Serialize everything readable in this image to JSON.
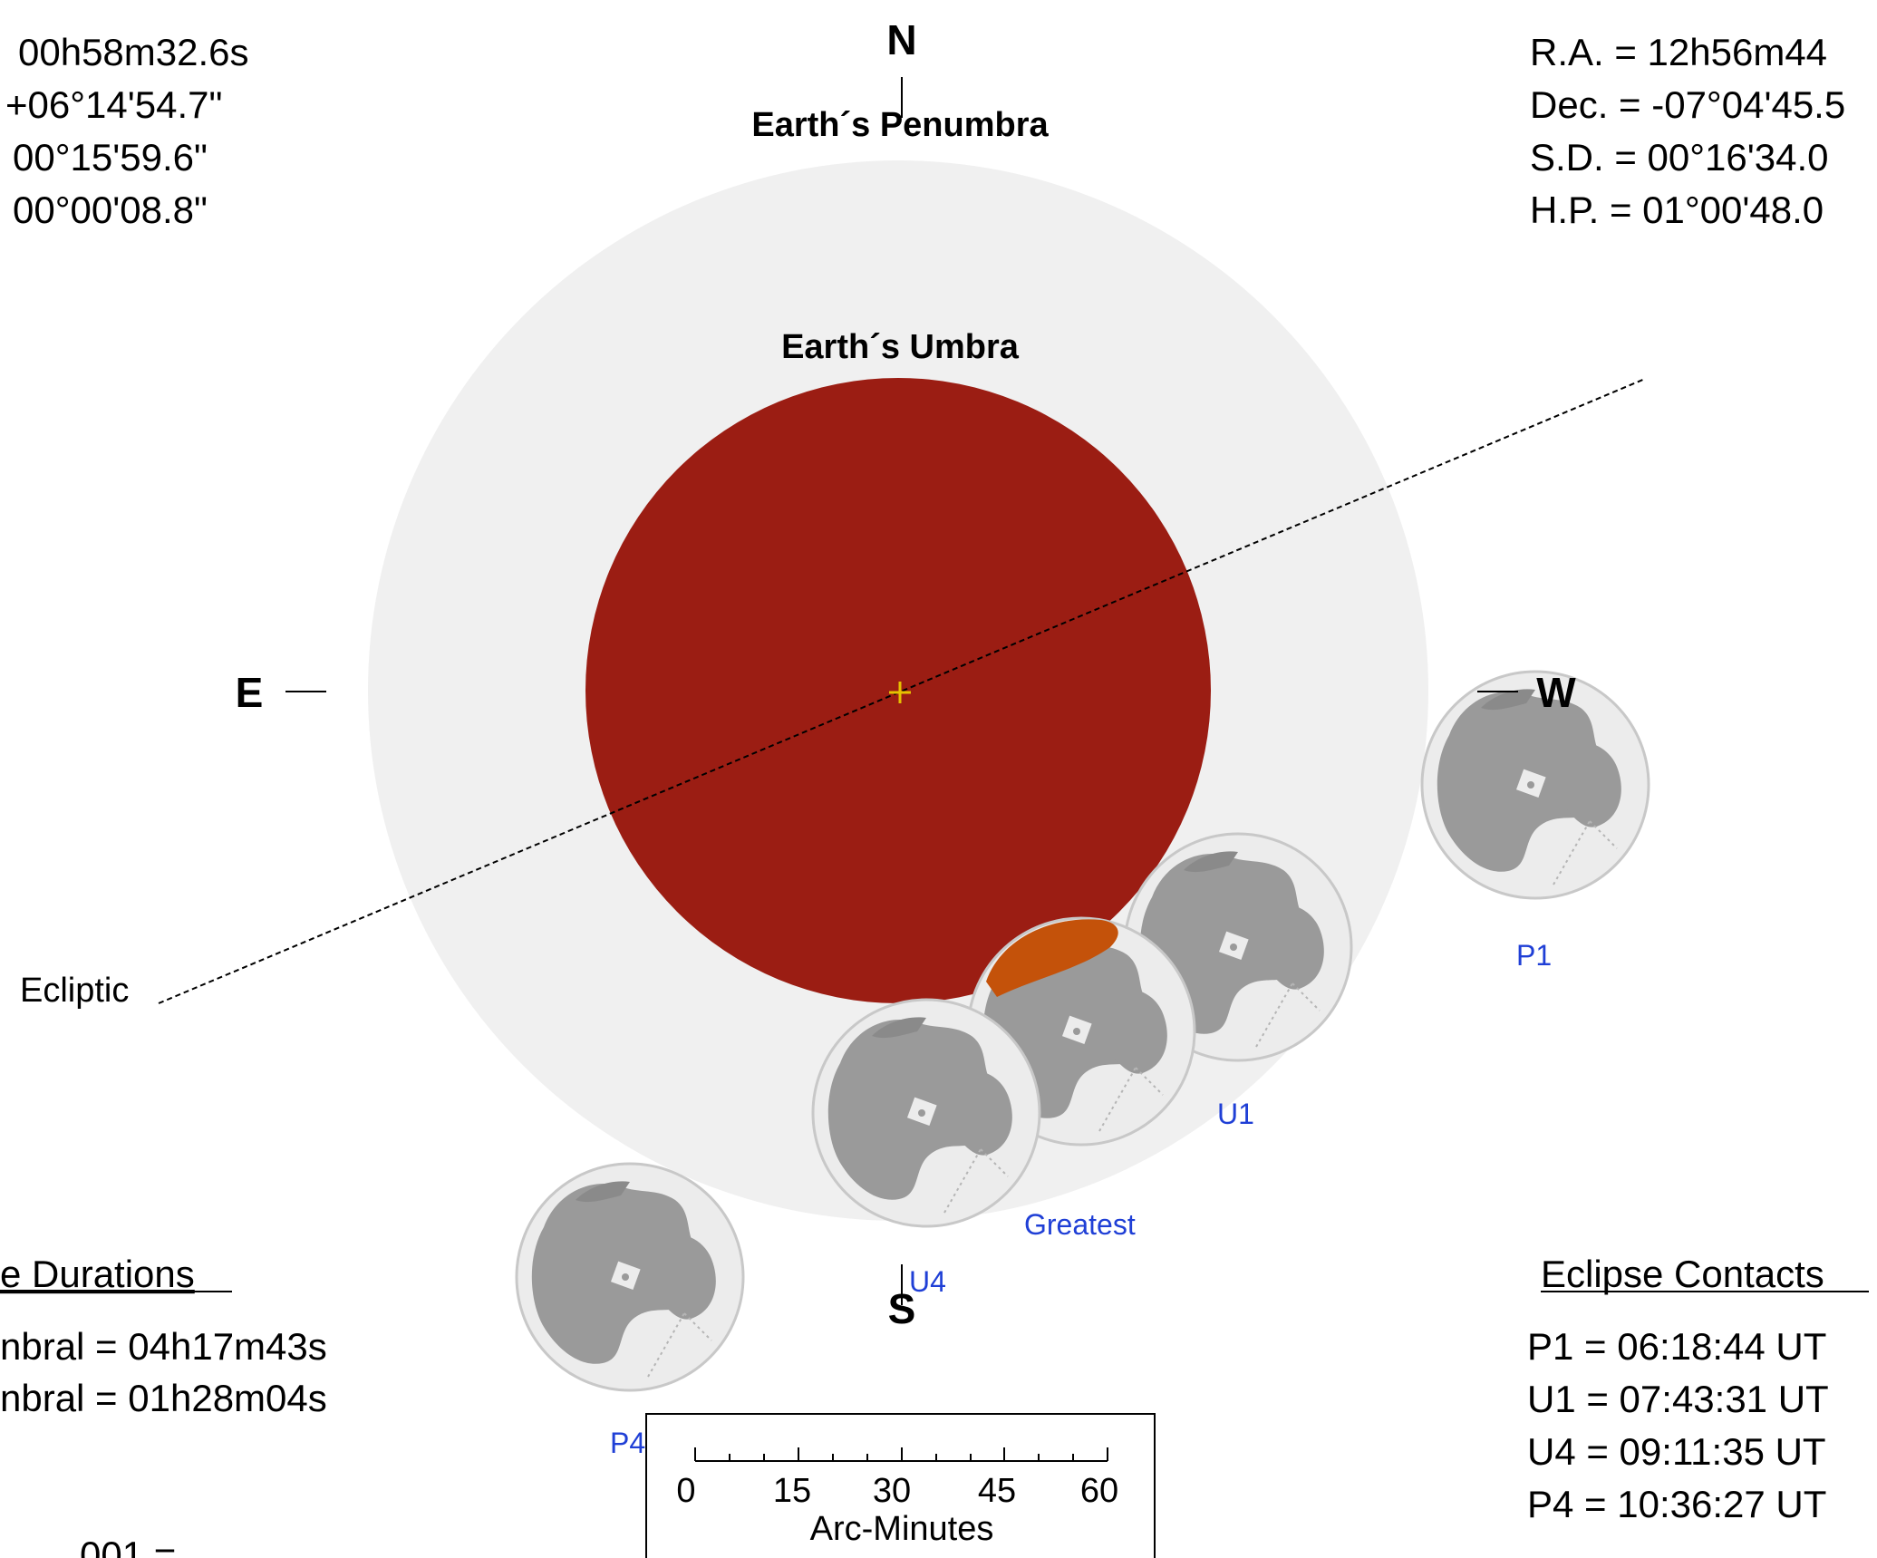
{
  "sun_info": {
    "ra": "00h58m32.6s",
    "dec": "+06°14'54.7\"",
    "sd": "00°15'59.6\"",
    "hp": "00°00'08.8\""
  },
  "moon_info": {
    "ra": "R.A. =  12h56m44",
    "dec": "Dec. = -07°04'45.5",
    "sd": "S.D. =  00°16'34.0",
    "hp": "H.P. =  01°00'48.0"
  },
  "compass": {
    "north": "N",
    "south": "S",
    "east": "E",
    "west": "W"
  },
  "labels": {
    "penumbra": "Earth´s Penumbra",
    "umbra": "Earth´s Umbra",
    "ecliptic": "Ecliptic"
  },
  "moon_positions": {
    "p1": "P1",
    "u1": "U1",
    "greatest": "Greatest",
    "u4": "U4",
    "p4": "P4"
  },
  "durations": {
    "title": "e Durations",
    "penumbral": "nbral = 04h17m43s",
    "umbral": "nbral = 01h28m04s",
    "partial_bottom": "001 ="
  },
  "contacts": {
    "title": "Eclipse Contacts",
    "items": [
      "P1 = 06:18:44  UT",
      "U1 = 07:43:31  UT",
      "U4 = 09:11:35  UT",
      "P4 = 10:36:27  UT"
    ]
  },
  "scale": {
    "ticks": [
      "0",
      "15",
      "30",
      "45",
      "60"
    ],
    "label": "Arc-Minutes"
  },
  "colors": {
    "penumbra": "#f0f0f0",
    "umbra": "#9b1d13",
    "umbra_edge_glow": "#c4520a",
    "moon_fill": "#ececec",
    "moon_maria": "#9a9a9a",
    "center_mark": "#e6c200",
    "label_blue": "#1f3fd6"
  },
  "icons": {
    "moon": "moon-disc-icon",
    "center": "crosshair-icon"
  }
}
